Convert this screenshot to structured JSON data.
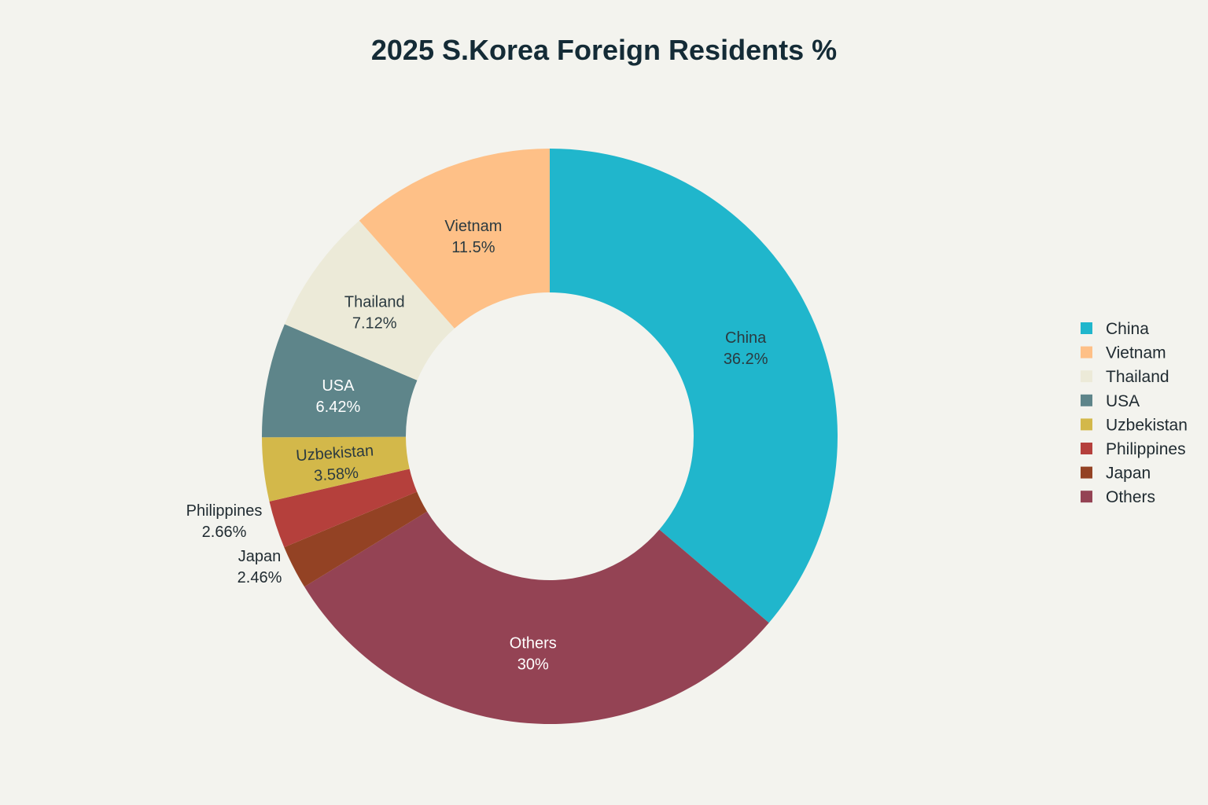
{
  "chart_data": {
    "type": "pie",
    "donut": true,
    "title": "2025 S.Korea Foreign Residents %",
    "legend_position": "right",
    "slices": [
      {
        "label": "China",
        "value": 36.2,
        "value_text": "36.2%",
        "color": "#20b6cc",
        "label_color": "#2b3a40"
      },
      {
        "label": "Others",
        "value": 30.0,
        "value_text": "30%",
        "color": "#944354",
        "label_color": "#ffffff"
      },
      {
        "label": "Japan",
        "value": 2.46,
        "value_text": "2.46%",
        "color": "#934224",
        "label_color": "#1f2a30"
      },
      {
        "label": "Philippines",
        "value": 2.66,
        "value_text": "2.66%",
        "color": "#b5403c",
        "label_color": "#1f2a30"
      },
      {
        "label": "Uzbekistan",
        "value": 3.58,
        "value_text": "3.58%",
        "color": "#d3b84a",
        "label_color": "#2b3a40"
      },
      {
        "label": "USA",
        "value": 6.42,
        "value_text": "6.42%",
        "color": "#5e858a",
        "label_color": "#ffffff"
      },
      {
        "label": "Thailand",
        "value": 7.12,
        "value_text": "7.12%",
        "color": "#ecead8",
        "label_color": "#2b3a40"
      },
      {
        "label": "Vietnam",
        "value": 11.5,
        "value_text": "11.5%",
        "color": "#fec087",
        "label_color": "#2b3a40"
      }
    ],
    "legend": [
      "China",
      "Vietnam",
      "Thailand",
      "USA",
      "Uzbekistan",
      "Philippines",
      "Japan",
      "Others"
    ]
  }
}
